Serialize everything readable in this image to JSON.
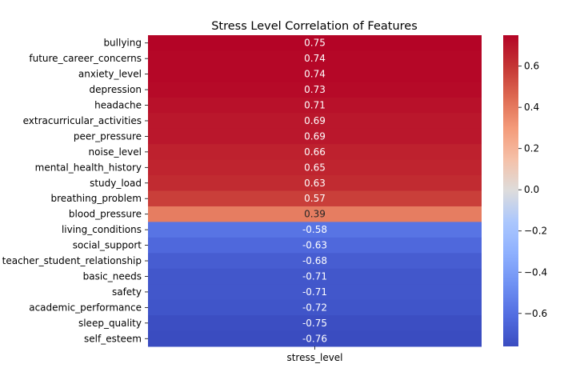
{
  "chart_data": {
    "type": "heatmap",
    "title": "Stress Level Correlation of Features",
    "xlabel": "",
    "ylabel": "",
    "columns": [
      "stress_level"
    ],
    "rows": [
      "bullying",
      "future_career_concerns",
      "anxiety_level",
      "depression",
      "headache",
      "extracurricular_activities",
      "peer_pressure",
      "noise_level",
      "mental_health_history",
      "study_load",
      "breathing_problem",
      "blood_pressure",
      "living_conditions",
      "social_support",
      "teacher_student_relationship",
      "basic_needs",
      "safety",
      "academic_performance",
      "sleep_quality",
      "self_esteem"
    ],
    "values": [
      0.75,
      0.74,
      0.74,
      0.73,
      0.71,
      0.69,
      0.69,
      0.66,
      0.65,
      0.63,
      0.57,
      0.39,
      -0.58,
      -0.63,
      -0.68,
      -0.71,
      -0.71,
      -0.72,
      -0.75,
      -0.76
    ],
    "value_labels": [
      "0.75",
      "0.74",
      "0.74",
      "0.73",
      "0.71",
      "0.69",
      "0.69",
      "0.66",
      "0.65",
      "0.63",
      "0.57",
      "0.39",
      "-0.58",
      "-0.63",
      "-0.68",
      "-0.71",
      "-0.71",
      "-0.72",
      "-0.75",
      "-0.76"
    ],
    "colormap": "coolwarm",
    "colorbar": {
      "range": [
        -0.76,
        0.75
      ],
      "ticks": [
        0.6,
        0.4,
        0.2,
        0.0,
        -0.2,
        -0.4,
        -0.6
      ],
      "tick_labels": [
        "0.6",
        "0.4",
        "0.2",
        "0.0",
        "−0.2",
        "−0.4",
        "−0.6"
      ],
      "placement": "right"
    },
    "grid": false
  }
}
